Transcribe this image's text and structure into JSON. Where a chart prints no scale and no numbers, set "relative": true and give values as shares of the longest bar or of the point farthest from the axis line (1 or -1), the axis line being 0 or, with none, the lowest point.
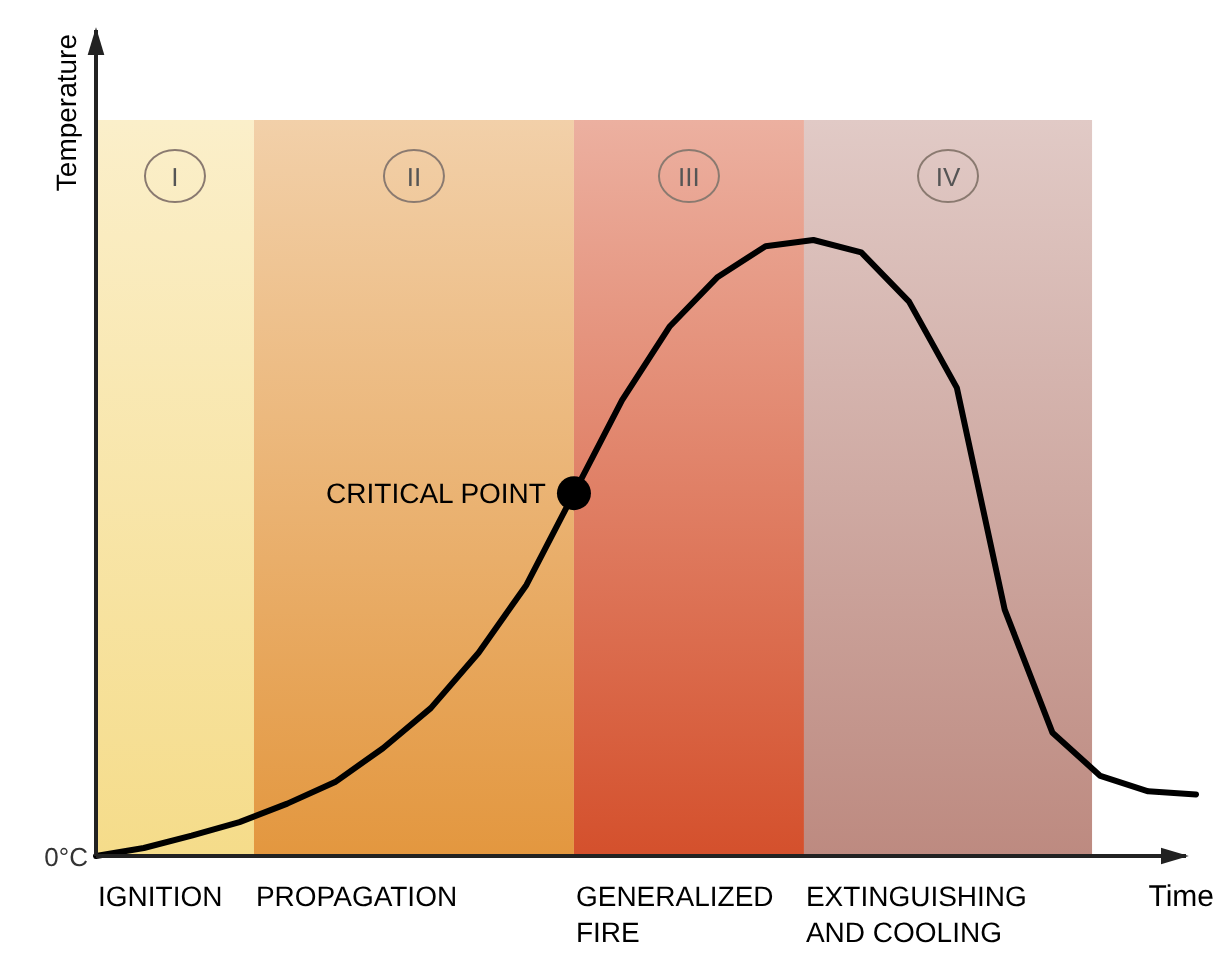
{
  "chart_data": {
    "type": "line",
    "relative": true,
    "xlabel": "Time",
    "ylabel": "Temperature",
    "categories": [
      null,
      null,
      null,
      null,
      null,
      null,
      null,
      null,
      null,
      null,
      null,
      null,
      null,
      null,
      null,
      null,
      null,
      null,
      null,
      null,
      null,
      null,
      null,
      null
    ],
    "series": [
      {
        "color": "#000000",
        "values": [
          0,
          0.013,
          0.033,
          0.055,
          0.085,
          0.12,
          0.175,
          0.24,
          0.33,
          0.44,
          0.59,
          0.74,
          0.86,
          0.94,
          0.99,
          1.0,
          0.98,
          0.9,
          0.76,
          0.4,
          0.2,
          0.13,
          0.105,
          0.1
        ]
      }
    ],
    "annotations": [
      "CRITICAL POINT",
      "I",
      "II",
      "III",
      "IV",
      "IGNITION",
      "PROPAGATION",
      "GENERALIZED FIRE",
      "EXTINGUISHING AND COOLING",
      "0°C"
    ]
  }
}
